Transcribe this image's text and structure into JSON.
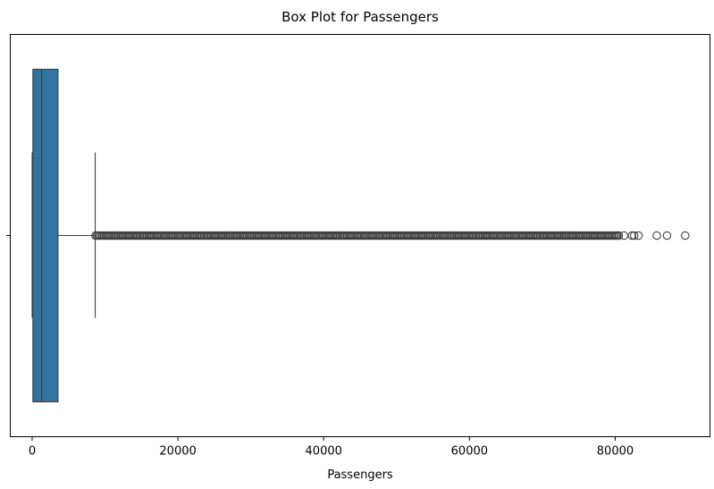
{
  "chart_data": {
    "type": "box",
    "title": "Box Plot for Passengers",
    "xlabel": "Passengers",
    "ylabel": "",
    "xlim": [
      -3000,
      93000
    ],
    "xticks": [
      0,
      20000,
      40000,
      60000,
      80000
    ],
    "grid": false,
    "box": {
      "min": 0,
      "q1": 100,
      "median": 1300,
      "q3": 3550,
      "whisker_low": 0,
      "whisker_high": 8650,
      "color": "#3274a1"
    },
    "outlier_range": [
      8700,
      80500
    ],
    "sparse_outliers": [
      81200,
      82300,
      82600,
      83200,
      85700,
      87100,
      89600
    ]
  }
}
